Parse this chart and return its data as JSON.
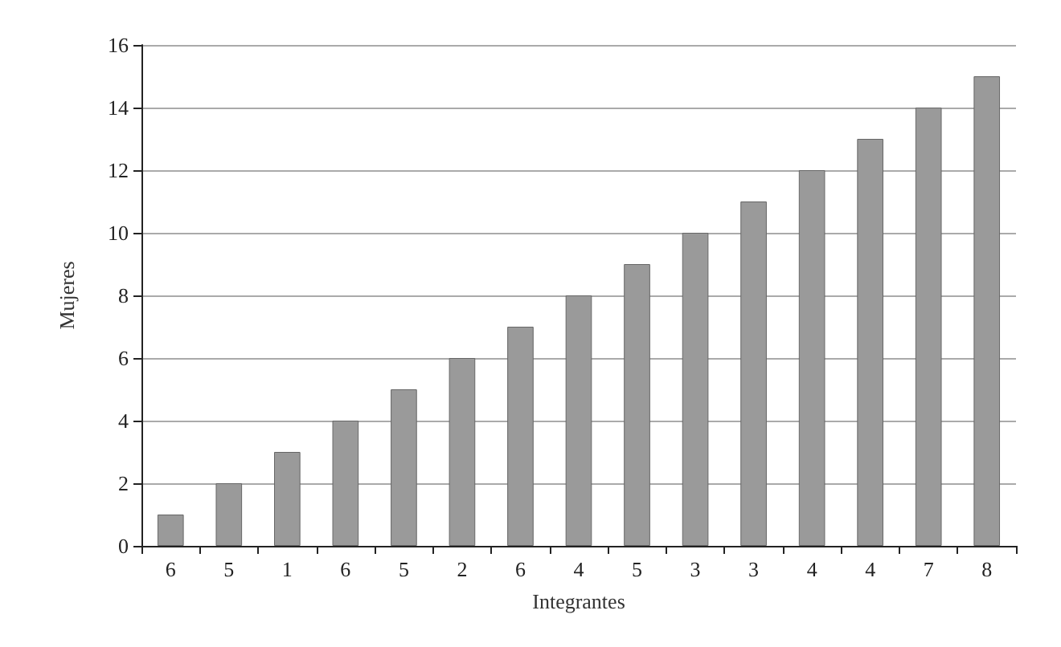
{
  "chart_data": {
    "type": "bar",
    "xlabel": "Integrantes",
    "ylabel": "Mujeres",
    "categories": [
      "6",
      "5",
      "1",
      "6",
      "5",
      "2",
      "6",
      "4",
      "5",
      "3",
      "3",
      "4",
      "4",
      "7",
      "8"
    ],
    "values": [
      1,
      2,
      3,
      4,
      5,
      6,
      7,
      8,
      9,
      10,
      11,
      12,
      13,
      14,
      15
    ],
    "color": "#9a9a9a",
    "ylim": [
      0,
      16
    ],
    "yticks": [
      0,
      2,
      4,
      6,
      8,
      10,
      12,
      14,
      16
    ],
    "grid": "y"
  }
}
